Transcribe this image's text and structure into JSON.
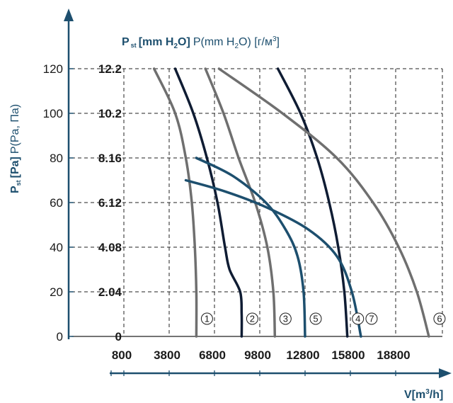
{
  "chart_data": {
    "type": "line",
    "y_axis_label": {
      "main": "P",
      "sub": "st",
      "bracket": "[Pa]",
      "tail": "P(Pa, Па)"
    },
    "mm_axis_label": {
      "main": "P",
      "sub": "st",
      "bracket": "[mm H",
      "bracket_sub": "2",
      "bracket_end": "O]",
      "tail_a": "P(mm H",
      "tail_sub": "2",
      "tail_b": "O) [г/м",
      "tail_sup": "3",
      "tail_c": "]"
    },
    "x_axis_label": {
      "main": "V[m",
      "sup": "3",
      "tail": "/h]"
    },
    "x_ticks": [
      "800",
      "3800",
      "6800",
      "9800",
      "12800",
      "15800",
      "18800"
    ],
    "x_tick_values": [
      800,
      3800,
      6800,
      9800,
      12800,
      15800,
      18800
    ],
    "y_ticks_pa": [
      "120",
      "100",
      "80",
      "60",
      "40",
      "20",
      "0"
    ],
    "y_tick_values": [
      120,
      100,
      80,
      60,
      40,
      20,
      0
    ],
    "y_ticks_mm": [
      "12.2",
      "10.2",
      "8.16",
      "6.12",
      "4.08",
      "2.04",
      "0"
    ],
    "xlim": [
      800,
      21800
    ],
    "ylim": [
      0,
      120
    ],
    "grid": "dashed",
    "colors": {
      "gray": "#6f6f6f",
      "navy": "#0f1c33",
      "teal": "#1d4f6e"
    },
    "series": [
      {
        "tag": "1",
        "color": "gray",
        "x": [
          2800,
          4200,
          4900,
          5300,
          5500,
          5600,
          5600
        ],
        "y": [
          120,
          100,
          80,
          60,
          40,
          20,
          0
        ]
      },
      {
        "tag": "2",
        "color": "navy",
        "x": [
          4200,
          5400,
          6300,
          7000,
          7500,
          7800,
          8500,
          8600,
          8600
        ],
        "y": [
          120,
          100,
          80,
          60,
          40,
          30,
          20,
          10,
          0
        ]
      },
      {
        "tag": "3",
        "color": "gray",
        "x": [
          6200,
          7400,
          8400,
          9500,
          10300,
          10700,
          10800
        ],
        "y": [
          120,
          100,
          80,
          60,
          40,
          20,
          0
        ]
      },
      {
        "tag": "4",
        "color": "navy",
        "x": [
          11000,
          12500,
          13600,
          14400,
          15000,
          15400,
          15600
        ],
        "y": [
          120,
          100,
          80,
          60,
          40,
          20,
          0
        ]
      },
      {
        "tag": "5",
        "color": "teal",
        "x": [
          5600,
          8000,
          10200,
          11500,
          12300,
          12700,
          12800
        ],
        "y": [
          80,
          72,
          60,
          48,
          36,
          20,
          0
        ]
      },
      {
        "tag": "6",
        "color": "gray",
        "x": [
          7100,
          11300,
          14900,
          17300,
          19000,
          20200,
          21000
        ],
        "y": [
          120,
          100,
          80,
          60,
          40,
          20,
          0
        ]
      },
      {
        "tag": "7",
        "color": "teal",
        "x": [
          4900,
          7500,
          10200,
          13000,
          14900,
          15900,
          16500
        ],
        "y": [
          70,
          65,
          58,
          48,
          36,
          20,
          0
        ]
      }
    ]
  }
}
